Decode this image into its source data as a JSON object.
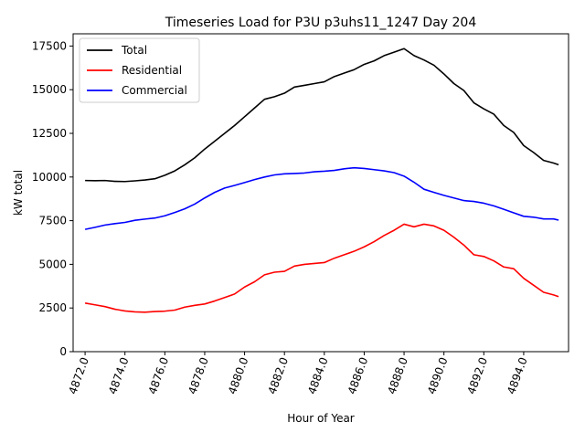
{
  "chart_data": {
    "type": "line",
    "title": "Timeseries Load for P3U p3uhs11_1247  Day 204",
    "xlabel": "Hour of Year",
    "ylabel": "kW total",
    "xlim": [
      4871.4,
      4896.25
    ],
    "ylim": [
      0,
      18200
    ],
    "xticks": [
      4872,
      4874,
      4876,
      4878,
      4880,
      4882,
      4884,
      4886,
      4888,
      4890,
      4892,
      4894
    ],
    "xtick_labels": [
      "4872.0",
      "4874.0",
      "4876.0",
      "4878.0",
      "4880.0",
      "4882.0",
      "4884.0",
      "4886.0",
      "4888.0",
      "4890.0",
      "4892.0",
      "4894.0"
    ],
    "yticks": [
      0,
      2500,
      5000,
      7500,
      10000,
      12500,
      15000,
      17500
    ],
    "ytick_labels": [
      "0",
      "2500",
      "5000",
      "7500",
      "10000",
      "12500",
      "15000",
      "17500"
    ],
    "legend_position": "upper-left",
    "x": [
      4872.0,
      4872.5,
      4873.0,
      4873.5,
      4874.0,
      4874.5,
      4875.0,
      4875.5,
      4876.0,
      4876.5,
      4877.0,
      4877.5,
      4878.0,
      4878.5,
      4879.0,
      4879.5,
      4880.0,
      4880.5,
      4881.0,
      4881.5,
      4882.0,
      4882.5,
      4883.0,
      4883.5,
      4884.0,
      4884.5,
      4885.0,
      4885.5,
      4886.0,
      4886.5,
      4887.0,
      4887.5,
      4888.0,
      4888.5,
      4889.0,
      4889.5,
      4890.0,
      4890.5,
      4891.0,
      4891.5,
      4892.0,
      4892.5,
      4893.0,
      4893.5,
      4894.0,
      4894.5,
      4895.0,
      4895.5,
      4895.75
    ],
    "series": [
      {
        "name": "Total",
        "color": "#000000",
        "values": [
          9800,
          9790,
          9800,
          9750,
          9740,
          9780,
          9830,
          9900,
          10100,
          10350,
          10700,
          11100,
          11600,
          12050,
          12500,
          12950,
          13450,
          13950,
          14450,
          14600,
          14800,
          15150,
          15250,
          15350,
          15450,
          15750,
          15950,
          16150,
          16450,
          16650,
          16950,
          17150,
          17350,
          16950,
          16700,
          16400,
          15900,
          15350,
          14950,
          14250,
          13900,
          13600,
          12950,
          12550,
          11800,
          11400,
          10950,
          10800,
          10700
        ]
      },
      {
        "name": "Residential",
        "color": "#ff0000",
        "values": [
          2780,
          2680,
          2580,
          2430,
          2330,
          2280,
          2260,
          2300,
          2320,
          2380,
          2550,
          2650,
          2730,
          2900,
          3100,
          3300,
          3700,
          4000,
          4400,
          4550,
          4600,
          4900,
          5000,
          5050,
          5100,
          5350,
          5550,
          5750,
          6000,
          6300,
          6650,
          6950,
          7300,
          7150,
          7300,
          7200,
          6950,
          6550,
          6100,
          5550,
          5450,
          5200,
          4850,
          4750,
          4200,
          3800,
          3400,
          3250,
          3150
        ]
      },
      {
        "name": "Commercial",
        "color": "#0000ff",
        "values": [
          7000,
          7120,
          7250,
          7330,
          7400,
          7520,
          7590,
          7650,
          7780,
          7970,
          8180,
          8450,
          8800,
          9120,
          9370,
          9520,
          9680,
          9850,
          10000,
          10120,
          10180,
          10200,
          10230,
          10300,
          10330,
          10380,
          10470,
          10530,
          10490,
          10420,
          10350,
          10250,
          10050,
          9700,
          9300,
          9120,
          8950,
          8800,
          8650,
          8600,
          8500,
          8350,
          8150,
          7950,
          7750,
          7700,
          7600,
          7600,
          7530
        ]
      }
    ]
  }
}
